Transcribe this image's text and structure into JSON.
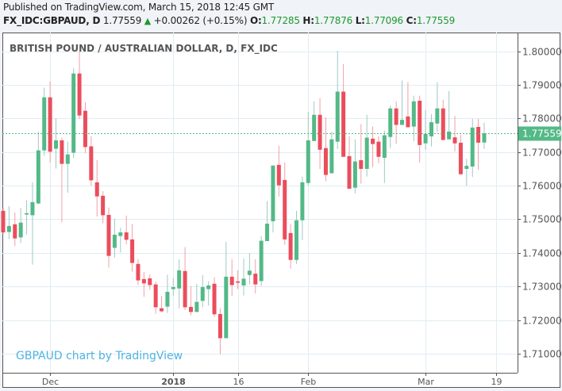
{
  "header": {
    "published": "Published on TradingView.com, March 15, 2018 12:45 GMT",
    "symbol": "FX_IDC:GBPAUD, D",
    "last": "1.77559",
    "change": "+0.00262 (+0.15%)",
    "open_label": "O:",
    "open": "1.77285",
    "high_label": "H:",
    "high": "1.77876",
    "low_label": "L:",
    "low": "1.77096",
    "close_label": "C:",
    "close": "1.77559",
    "direction_icon": "triangle-up-icon"
  },
  "chart_data": {
    "type": "candlestick",
    "title": "BRITISH POUND / AUSTRALIAN DOLLAR, D, FX_IDC",
    "watermark": "GBPAUD chart by TradingView",
    "ylim": [
      1.7043,
      1.8056
    ],
    "y_ticks": [
      "1.80000",
      "1.79000",
      "1.78000",
      "1.77000",
      "1.76000",
      "1.75000",
      "1.74000",
      "1.73000",
      "1.72000",
      "1.71000"
    ],
    "x_ticks": [
      {
        "label": "Dec",
        "index": 8,
        "bold": false
      },
      {
        "label": "2018",
        "index": 29,
        "bold": true
      },
      {
        "label": "16",
        "index": 40,
        "bold": false
      },
      {
        "label": "Feb",
        "index": 52,
        "bold": false
      },
      {
        "label": "Mar",
        "index": 72,
        "bold": false
      },
      {
        "label": "19",
        "index": 84,
        "bold": false
      }
    ],
    "last_price": "1.77559",
    "grid": true,
    "colors": {
      "up": "#53b987",
      "down": "#eb4d5c",
      "up_wick": "#9ec8c6",
      "down_wick": "#f2a0a8",
      "grid": "#e1ecf2",
      "last_price": "#53b987",
      "watermark": "#4fb3e3"
    },
    "ohlc": [
      [
        1.7525,
        1.7535,
        1.7455,
        1.7461
      ],
      [
        1.7462,
        1.7539,
        1.7441,
        1.748
      ],
      [
        1.7485,
        1.752,
        1.742,
        1.7443
      ],
      [
        1.7446,
        1.7533,
        1.7429,
        1.749
      ],
      [
        1.7514,
        1.7557,
        1.7454,
        1.7518
      ],
      [
        1.7512,
        1.761,
        1.7365,
        1.7551
      ],
      [
        1.7547,
        1.7761,
        1.7545,
        1.7705
      ],
      [
        1.7705,
        1.7892,
        1.7689,
        1.7863
      ],
      [
        1.7863,
        1.7911,
        1.7669,
        1.7701
      ],
      [
        1.771,
        1.7801,
        1.7651,
        1.7735
      ],
      [
        1.7735,
        1.7743,
        1.7491,
        1.7665
      ],
      [
        1.7665,
        1.7731,
        1.7579,
        1.7693
      ],
      [
        1.7698,
        1.795,
        1.7683,
        1.7934
      ],
      [
        1.7934,
        1.8,
        1.7798,
        1.7809
      ],
      [
        1.7823,
        1.7849,
        1.7697,
        1.7715
      ],
      [
        1.7717,
        1.7747,
        1.76,
        1.7616
      ],
      [
        1.761,
        1.7676,
        1.7508,
        1.7568
      ],
      [
        1.757,
        1.7584,
        1.7488,
        1.7512
      ],
      [
        1.7513,
        1.7535,
        1.7356,
        1.7391
      ],
      [
        1.7415,
        1.7502,
        1.7386,
        1.7454
      ],
      [
        1.745,
        1.7475,
        1.7401,
        1.7461
      ],
      [
        1.7461,
        1.7511,
        1.7425,
        1.7439
      ],
      [
        1.744,
        1.7486,
        1.7344,
        1.737
      ],
      [
        1.7367,
        1.7381,
        1.7304,
        1.7318
      ],
      [
        1.7322,
        1.7343,
        1.7269,
        1.7309
      ],
      [
        1.7324,
        1.7336,
        1.729,
        1.7304
      ],
      [
        1.7306,
        1.7314,
        1.7219,
        1.7238
      ],
      [
        1.7235,
        1.7272,
        1.7223,
        1.7226
      ],
      [
        1.724,
        1.7335,
        1.7221,
        1.7284
      ],
      [
        1.7292,
        1.7325,
        1.7273,
        1.7298
      ],
      [
        1.7294,
        1.7381,
        1.7235,
        1.7348
      ],
      [
        1.7346,
        1.7417,
        1.723,
        1.7238
      ],
      [
        1.7239,
        1.7301,
        1.7214,
        1.7224
      ],
      [
        1.7224,
        1.7308,
        1.7224,
        1.7254
      ],
      [
        1.7257,
        1.7334,
        1.7238,
        1.7298
      ],
      [
        1.7292,
        1.7315,
        1.7243,
        1.7303
      ],
      [
        1.7308,
        1.7327,
        1.7209,
        1.7217
      ],
      [
        1.7218,
        1.7235,
        1.7098,
        1.7146
      ],
      [
        1.7146,
        1.7433,
        1.7146,
        1.7329
      ],
      [
        1.7329,
        1.7381,
        1.7271,
        1.7304
      ],
      [
        1.7315,
        1.7348,
        1.7292,
        1.7311
      ],
      [
        1.7303,
        1.7383,
        1.7273,
        1.7323
      ],
      [
        1.7334,
        1.7399,
        1.7306,
        1.7347
      ],
      [
        1.7338,
        1.7381,
        1.7279,
        1.7306
      ],
      [
        1.7316,
        1.745,
        1.7301,
        1.7436
      ],
      [
        1.7435,
        1.7554,
        1.7435,
        1.7487
      ],
      [
        1.7494,
        1.766,
        1.7461,
        1.766
      ],
      [
        1.7662,
        1.7719,
        1.7568,
        1.7601
      ],
      [
        1.7617,
        1.7669,
        1.7424,
        1.744
      ],
      [
        1.7459,
        1.7485,
        1.7353,
        1.7379
      ],
      [
        1.7379,
        1.7525,
        1.7367,
        1.7497
      ],
      [
        1.7497,
        1.7627,
        1.7438,
        1.761
      ],
      [
        1.7608,
        1.782,
        1.7601,
        1.7735
      ],
      [
        1.7733,
        1.7851,
        1.7733,
        1.7811
      ],
      [
        1.7811,
        1.7861,
        1.765,
        1.7707
      ],
      [
        1.7712,
        1.7804,
        1.7613,
        1.7632
      ],
      [
        1.7637,
        1.7761,
        1.7637,
        1.7738
      ],
      [
        1.7731,
        1.8002,
        1.7709,
        1.788
      ],
      [
        1.788,
        1.7962,
        1.7686,
        1.7686
      ],
      [
        1.7688,
        1.7747,
        1.7591,
        1.7591
      ],
      [
        1.7594,
        1.7738,
        1.7577,
        1.7672
      ],
      [
        1.7676,
        1.7783,
        1.7606,
        1.765
      ],
      [
        1.765,
        1.7811,
        1.7627,
        1.7743
      ],
      [
        1.774,
        1.7776,
        1.7655,
        1.7724
      ],
      [
        1.7731,
        1.7747,
        1.7667,
        1.7686
      ],
      [
        1.7683,
        1.7764,
        1.7608,
        1.775
      ],
      [
        1.7745,
        1.7839,
        1.7712,
        1.783
      ],
      [
        1.783,
        1.7851,
        1.7724,
        1.7781
      ],
      [
        1.7781,
        1.7913,
        1.7781,
        1.7796
      ],
      [
        1.7806,
        1.7908,
        1.7774,
        1.7774
      ],
      [
        1.7776,
        1.7868,
        1.7733,
        1.7851
      ],
      [
        1.7853,
        1.7868,
        1.7669,
        1.7721
      ],
      [
        1.7726,
        1.7825,
        1.7707,
        1.7754
      ],
      [
        1.7747,
        1.7813,
        1.7717,
        1.7789
      ],
      [
        1.7785,
        1.7908,
        1.7759,
        1.783
      ],
      [
        1.783,
        1.7856,
        1.7736,
        1.7736
      ],
      [
        1.7738,
        1.7882,
        1.7738,
        1.7761
      ],
      [
        1.7744,
        1.7808,
        1.7702,
        1.7726
      ],
      [
        1.7728,
        1.7751,
        1.7634,
        1.7634
      ],
      [
        1.765,
        1.768,
        1.76,
        1.7659
      ],
      [
        1.7657,
        1.7799,
        1.7626,
        1.7773
      ],
      [
        1.7775,
        1.7799,
        1.7648,
        1.7728
      ],
      [
        1.77285,
        1.77876,
        1.77096,
        1.77559
      ]
    ]
  }
}
